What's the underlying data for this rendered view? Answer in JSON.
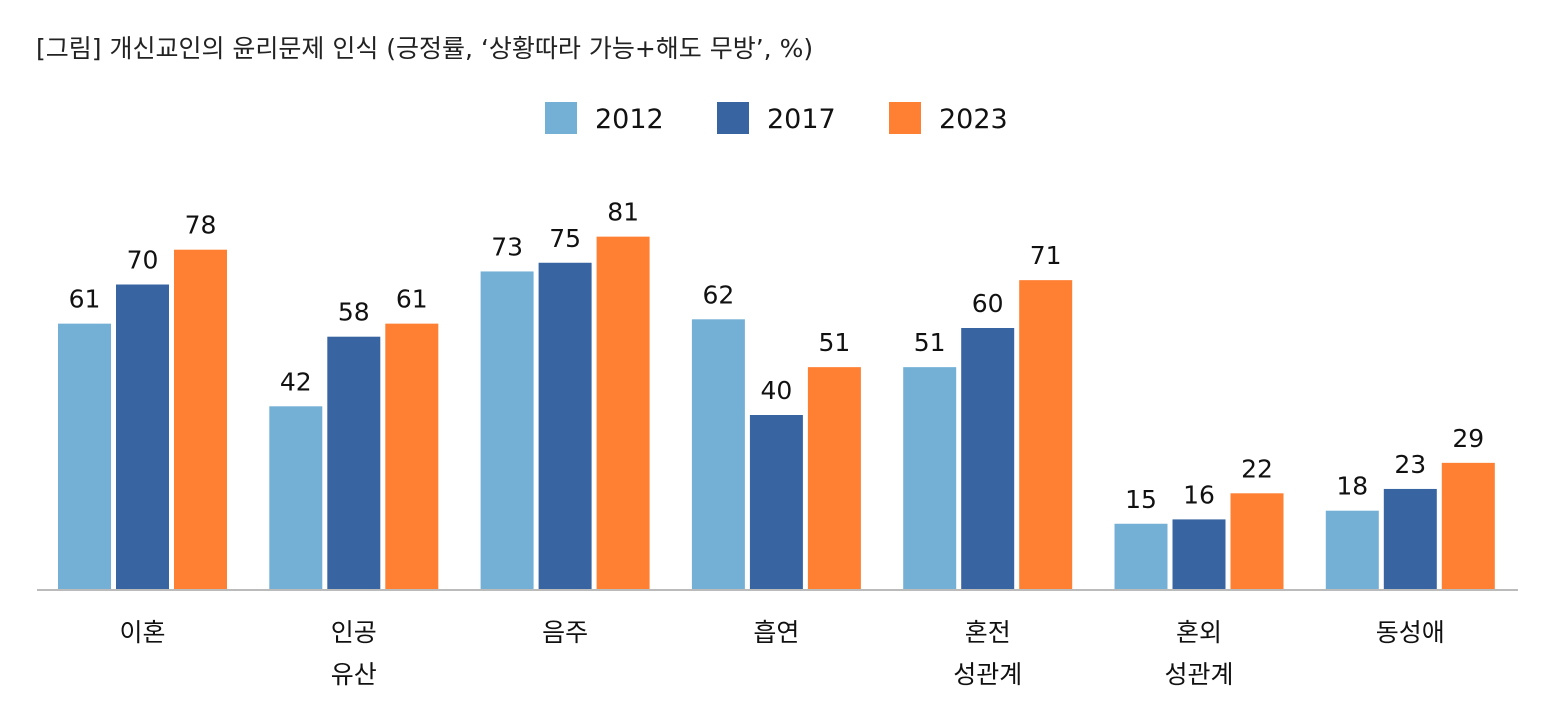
{
  "chart_data": {
    "type": "bar",
    "title": "[그림] 개신교인의 윤리문제 인식 (긍정률, ‘상황따라 가능+해도 무방’, %)",
    "categories": [
      [
        "이혼"
      ],
      [
        "인공",
        "유산"
      ],
      [
        "음주"
      ],
      [
        "흡연"
      ],
      [
        "혼전",
        "성관계"
      ],
      [
        "혼외",
        "성관계"
      ],
      [
        "동성애"
      ]
    ],
    "series": [
      {
        "name": "2012",
        "color": "#74b0d6",
        "values": [
          61,
          42,
          73,
          62,
          51,
          15,
          18
        ]
      },
      {
        "name": "2017",
        "color": "#3865a1",
        "values": [
          70,
          58,
          75,
          40,
          60,
          16,
          23
        ]
      },
      {
        "name": "2023",
        "color": "#ff7f33",
        "values": [
          78,
          61,
          81,
          51,
          71,
          22,
          29
        ]
      }
    ],
    "ylim": [
      0,
      100
    ],
    "legend": "top-center",
    "grid": false
  }
}
